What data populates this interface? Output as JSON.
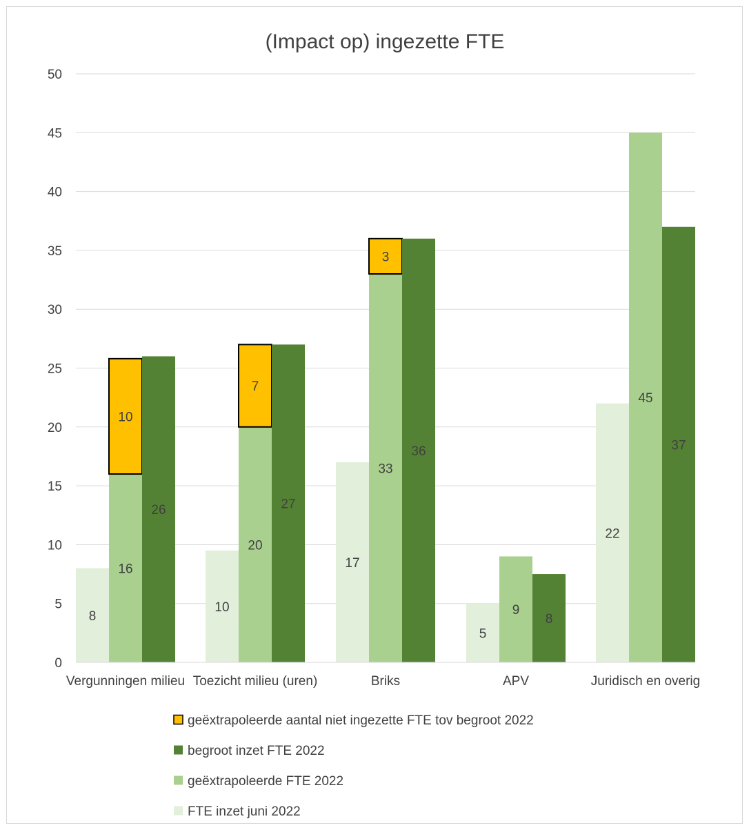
{
  "chart_data": {
    "type": "bar",
    "title": "(Impact op) ingezette FTE",
    "xlabel": "",
    "ylabel": "",
    "ylim": [
      0,
      50
    ],
    "yticks": [
      0,
      5,
      10,
      15,
      20,
      25,
      30,
      35,
      40,
      45,
      50
    ],
    "grid": true,
    "legend_position": "bottom",
    "categories": [
      "Vergunningen milieu",
      "Toezicht milieu (uren)",
      "Briks",
      "APV",
      "Juridisch en overig"
    ],
    "series": [
      {
        "name": "FTE inzet juni 2022",
        "color": "#e2efda",
        "values": [
          8,
          9.5,
          17,
          5,
          22
        ],
        "labels": [
          "8",
          "10",
          "17",
          "5",
          "22"
        ]
      },
      {
        "name": "geëxtrapoleerde FTE 2022",
        "color": "#a9d08e",
        "values": [
          16,
          20,
          33,
          9,
          45
        ],
        "labels": [
          "16",
          "20",
          "33",
          "9",
          "45"
        ]
      },
      {
        "name": "geëxtrapoleerde  aantal niet ingezette FTE tov begroot  2022",
        "color": "#ffc000",
        "border": "#000000",
        "stacked_on": "geëxtrapoleerde FTE 2022",
        "values": [
          9.8,
          7,
          3,
          null,
          null
        ],
        "labels": [
          "10",
          "7",
          "3",
          "",
          ""
        ]
      },
      {
        "name": "begroot inzet FTE 2022",
        "color": "#548235",
        "values": [
          26,
          27,
          36,
          7.5,
          37
        ],
        "labels": [
          "26",
          "27",
          "36",
          "8",
          "37"
        ]
      }
    ],
    "legend_order": [
      "geëxtrapoleerde  aantal niet ingezette FTE tov begroot  2022",
      "begroot inzet FTE 2022",
      "geëxtrapoleerde FTE 2022",
      "FTE inzet juni 2022"
    ]
  }
}
